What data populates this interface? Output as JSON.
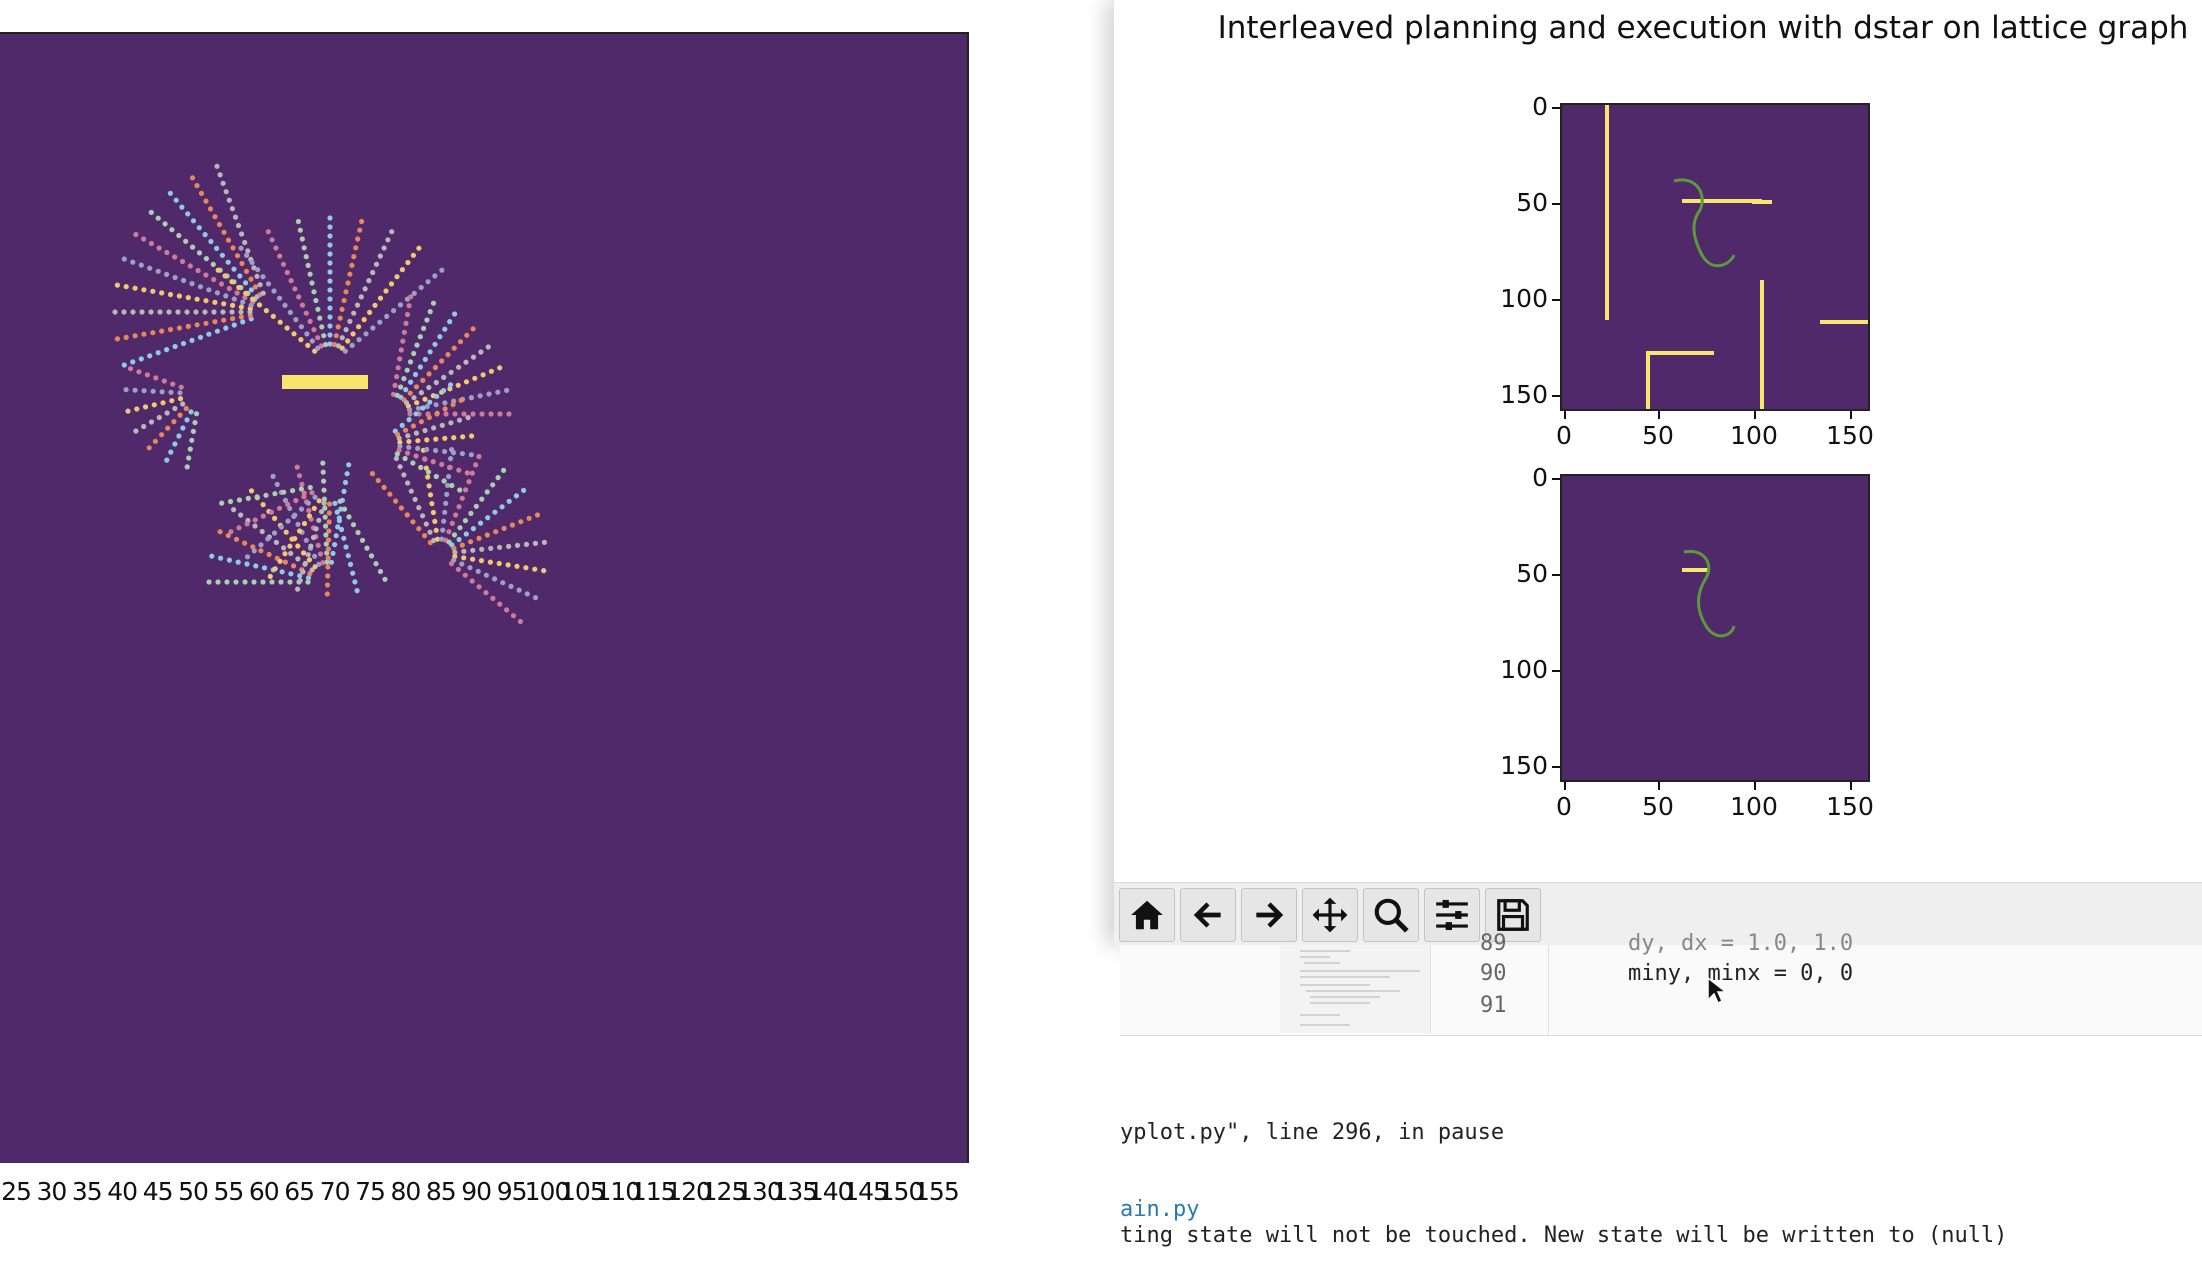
{
  "window": {
    "title": "Interleaved planning and execution with dstar on lattice graph"
  },
  "left_plot": {
    "xticks": [
      "25",
      "30",
      "35",
      "40",
      "45",
      "50",
      "55",
      "60",
      "65",
      "70",
      "75",
      "80",
      "85",
      "90",
      "95",
      "100",
      "105",
      "110",
      "115",
      "120",
      "125",
      "130",
      "135",
      "140",
      "145",
      "150",
      "155"
    ]
  },
  "top_subplot": {
    "yticks": [
      "0",
      "50",
      "100",
      "150"
    ],
    "xticks": [
      "0",
      "50",
      "100",
      "150"
    ]
  },
  "bottom_subplot": {
    "yticks": [
      "0",
      "50",
      "100",
      "150"
    ],
    "xticks": [
      "0",
      "50",
      "100",
      "150"
    ]
  },
  "toolbar": {
    "buttons": [
      {
        "name": "home-button",
        "icon": "home-icon"
      },
      {
        "name": "back-button",
        "icon": "arrow-left-icon"
      },
      {
        "name": "forward-button",
        "icon": "arrow-right-icon"
      },
      {
        "name": "pan-button",
        "icon": "move-icon"
      },
      {
        "name": "zoom-button",
        "icon": "search-icon"
      },
      {
        "name": "configure-subplots-button",
        "icon": "sliders-icon"
      },
      {
        "name": "save-button",
        "icon": "floppy-icon"
      }
    ]
  },
  "editor": {
    "lines": [
      {
        "number": "89",
        "code": "dy, dx = 1.0, 1.0"
      },
      {
        "number": "90",
        "code": "miny, minx = 0, 0"
      },
      {
        "number": "91",
        "code": ""
      }
    ]
  },
  "terminal": {
    "line1": "yplot.py\", line 296, in pause",
    "link": "ain.py",
    "line3": "ting state will not be touched. New state will be written to (null)"
  },
  "colors": {
    "background": "#50296a",
    "obstacle": "#f9e46c",
    "path": "#5a9a3a"
  }
}
